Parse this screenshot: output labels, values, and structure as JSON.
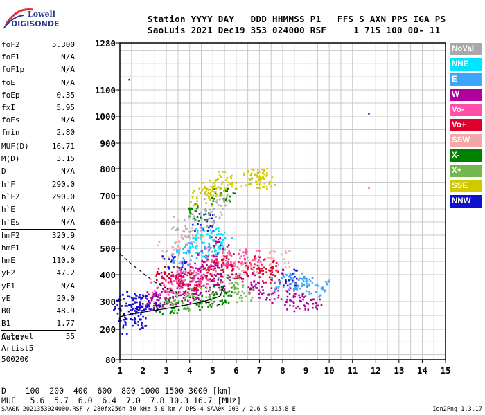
{
  "logo": {
    "line1": "Lowell",
    "line2": "DIGISONDE"
  },
  "header": {
    "line1": "Station YYYY DAY   DDD HHMMSS P1   FFS S AXN PPS IGA PS",
    "line2": "SaoLuis 2021 Dec19 353 024000 RSF     1 715 100 00- 11"
  },
  "params": [
    {
      "name": "foF2",
      "value": "5.300"
    },
    {
      "name": "foF1",
      "value": "N/A"
    },
    {
      "name": "foF1p",
      "value": "N/A"
    },
    {
      "name": "foE",
      "value": "N/A"
    },
    {
      "name": "foEp",
      "value": "0.35"
    },
    {
      "name": "fxI",
      "value": "5.95"
    },
    {
      "name": "foEs",
      "value": "N/A"
    },
    {
      "name": "fmin",
      "value": "2.80",
      "sep": true
    },
    {
      "name": "MUF(D)",
      "value": "16.71"
    },
    {
      "name": "M(D)",
      "value": "3.15"
    },
    {
      "name": "D",
      "value": "N/A",
      "sep": true
    },
    {
      "name": "h`F",
      "value": "290.0"
    },
    {
      "name": "h`F2",
      "value": "290.0"
    },
    {
      "name": "h`E",
      "value": "N/A"
    },
    {
      "name": "h`Es",
      "value": "N/A",
      "sep": true
    },
    {
      "name": "hmF2",
      "value": "320.9"
    },
    {
      "name": "hmF1",
      "value": "N/A"
    },
    {
      "name": "hmE",
      "value": "110.0"
    },
    {
      "name": "yF2",
      "value": "47.2"
    },
    {
      "name": "yF1",
      "value": "N/A"
    },
    {
      "name": "yE",
      "value": "20.0"
    },
    {
      "name": "B0",
      "value": "48.9"
    },
    {
      "name": "B1",
      "value": "1.77",
      "sep": true
    },
    {
      "name": "C-level",
      "value": "55",
      "sep": true
    }
  ],
  "auto": [
    "Auto:",
    "Artist5",
    "500200"
  ],
  "legend": [
    {
      "label": "NoVal",
      "color": "#a8a8a8"
    },
    {
      "label": "NNE",
      "color": "#00e5ff"
    },
    {
      "label": "E",
      "color": "#3ca6ff"
    },
    {
      "label": "W",
      "color": "#b0009c"
    },
    {
      "label": "Vo-",
      "color": "#ff4fa8"
    },
    {
      "label": "Vo+",
      "color": "#e0002a"
    },
    {
      "label": "SSW",
      "color": "#f5a6a6"
    },
    {
      "label": "X-",
      "color": "#008000"
    },
    {
      "label": "X+",
      "color": "#73b84e"
    },
    {
      "label": "SSE",
      "color": "#d2c800"
    },
    {
      "label": "NNW",
      "color": "#1010d0"
    }
  ],
  "bottom": {
    "d_line": "D    100  200  400  600  800 1000 1500 3000 [km]",
    "muf_line": "MUF   5.6  5.7  6.0  6.4  7.0  7.8 10.3 16.7 [MHz]"
  },
  "footer": {
    "left": "SAA0K_2021353024000.RSF / 280fx256h 50 kHz 5.0 km / DPS-4 SAA0K 903 / 2.6 S 315.8 E",
    "right": "Ion2Png 1.3.17"
  },
  "chart_data": {
    "type": "scatter",
    "title": "",
    "xlabel": "",
    "ylabel": "",
    "xlim": [
      1,
      15
    ],
    "ylim": [
      80,
      1280
    ],
    "x_ticks": [
      1,
      2,
      3,
      4,
      5,
      6,
      7,
      8,
      9,
      10,
      11,
      12,
      13,
      14,
      15
    ],
    "y_ticks": [
      80,
      200,
      300,
      400,
      500,
      600,
      700,
      800,
      900,
      1000,
      1100,
      1280
    ],
    "y_scale": "reciprocal-distance",
    "grid": true,
    "legend_position": "right",
    "clusters": [
      {
        "name": "W",
        "color": "#b0009c",
        "points": [
          [
            2.0,
            300
          ],
          [
            2.5,
            310
          ],
          [
            3.0,
            320
          ],
          [
            3.5,
            330
          ],
          [
            4.0,
            345
          ],
          [
            4.5,
            360
          ],
          [
            5.0,
            380
          ],
          [
            5.5,
            410
          ],
          [
            3.2,
            380
          ],
          [
            4.2,
            420
          ],
          [
            4.8,
            460
          ],
          [
            5.2,
            520
          ],
          [
            6.5,
            380
          ],
          [
            7.0,
            340
          ],
          [
            8.0,
            320
          ],
          [
            8.5,
            300
          ],
          [
            9.2,
            305
          ]
        ]
      },
      {
        "name": "Vo+",
        "color": "#e0002a",
        "points": [
          [
            3.0,
            400
          ],
          [
            3.5,
            380
          ],
          [
            4.0,
            370
          ],
          [
            4.5,
            400
          ],
          [
            5.0,
            430
          ],
          [
            5.4,
            450
          ],
          [
            6.3,
            420
          ],
          [
            6.8,
            440
          ],
          [
            7.2,
            430
          ],
          [
            7.5,
            400
          ]
        ]
      },
      {
        "name": "Vo-",
        "color": "#ff4fa8",
        "points": [
          [
            2.8,
            350
          ],
          [
            3.4,
            360
          ],
          [
            3.9,
            410
          ],
          [
            4.6,
            390
          ],
          [
            5.1,
            470
          ],
          [
            6.0,
            460
          ],
          [
            6.6,
            470
          ]
        ]
      },
      {
        "name": "NNW",
        "color": "#1010d0",
        "points": [
          [
            1.2,
            290
          ],
          [
            1.5,
            310
          ],
          [
            1.8,
            305
          ],
          [
            2.2,
            300
          ],
          [
            1.4,
            240
          ],
          [
            1.6,
            235
          ],
          [
            4.6,
            600
          ],
          [
            3.3,
            450
          ],
          [
            8.3,
            390
          ]
        ]
      },
      {
        "name": "E",
        "color": "#3ca6ff",
        "points": [
          [
            8.0,
            370
          ],
          [
            8.5,
            380
          ],
          [
            9.0,
            360
          ],
          [
            9.5,
            350
          ],
          [
            3.6,
            470
          ],
          [
            4.3,
            500
          ]
        ]
      },
      {
        "name": "NNE",
        "color": "#00e5ff",
        "points": [
          [
            5.0,
            490
          ],
          [
            5.3,
            540
          ],
          [
            4.7,
            560
          ],
          [
            3.8,
            520
          ]
        ]
      },
      {
        "name": "X-",
        "color": "#008000",
        "points": [
          [
            3.0,
            290
          ],
          [
            4.0,
            300
          ],
          [
            5.0,
            310
          ],
          [
            5.5,
            330
          ],
          [
            4.4,
            640
          ],
          [
            5.4,
            700
          ]
        ]
      },
      {
        "name": "X+",
        "color": "#73b84e",
        "points": [
          [
            3.5,
            300
          ],
          [
            4.5,
            320
          ],
          [
            5.6,
            360
          ],
          [
            6.2,
            330
          ]
        ]
      },
      {
        "name": "SSE",
        "color": "#d2c800",
        "points": [
          [
            4.5,
            700
          ],
          [
            4.9,
            720
          ],
          [
            5.3,
            730
          ],
          [
            5.5,
            760
          ],
          [
            6.7,
            760
          ],
          [
            7.2,
            760
          ],
          [
            6.9,
            770
          ]
        ]
      },
      {
        "name": "SSW",
        "color": "#f5a6a6",
        "points": [
          [
            3.1,
            500
          ],
          [
            4.1,
            550
          ],
          [
            6.4,
            430
          ],
          [
            7.8,
            460
          ]
        ]
      },
      {
        "name": "NoVal",
        "color": "#a8a8a8",
        "points": [
          [
            3.7,
            600
          ],
          [
            4.9,
            620
          ],
          [
            5.1,
            680
          ]
        ]
      }
    ],
    "isolated_points": [
      {
        "x": 1.4,
        "y": 1140,
        "color": "#1010d0"
      },
      {
        "x": 11.7,
        "y": 1010,
        "color": "#1010d0"
      },
      {
        "x": 11.7,
        "y": 730,
        "color": "#ff4fa8"
      },
      {
        "x": 1.1,
        "y": 182,
        "color": "#1010d0"
      },
      {
        "x": 1.3,
        "y": 182,
        "color": "#1010d0"
      },
      {
        "x": 2.0,
        "y": 204,
        "color": "#e0002a"
      }
    ],
    "lines": [
      {
        "name": "profile",
        "style": "solid",
        "points": [
          [
            1.0,
            245
          ],
          [
            1.5,
            255
          ],
          [
            2.0,
            262
          ],
          [
            2.5,
            268
          ],
          [
            3.0,
            275
          ],
          [
            3.5,
            282
          ],
          [
            4.0,
            290
          ],
          [
            4.5,
            298
          ],
          [
            5.0,
            310
          ],
          [
            5.3,
            320
          ],
          [
            5.4,
            340
          ],
          [
            5.5,
            360
          ]
        ]
      },
      {
        "name": "trace-upper",
        "style": "dashed",
        "points": [
          [
            1.0,
            480
          ],
          [
            1.5,
            440
          ],
          [
            2.0,
            405
          ],
          [
            2.5,
            372
          ],
          [
            3.0,
            350
          ],
          [
            3.5,
            332
          ],
          [
            4.0,
            315
          ],
          [
            4.5,
            302
          ],
          [
            5.0,
            292
          ],
          [
            5.3,
            288
          ]
        ]
      }
    ]
  }
}
